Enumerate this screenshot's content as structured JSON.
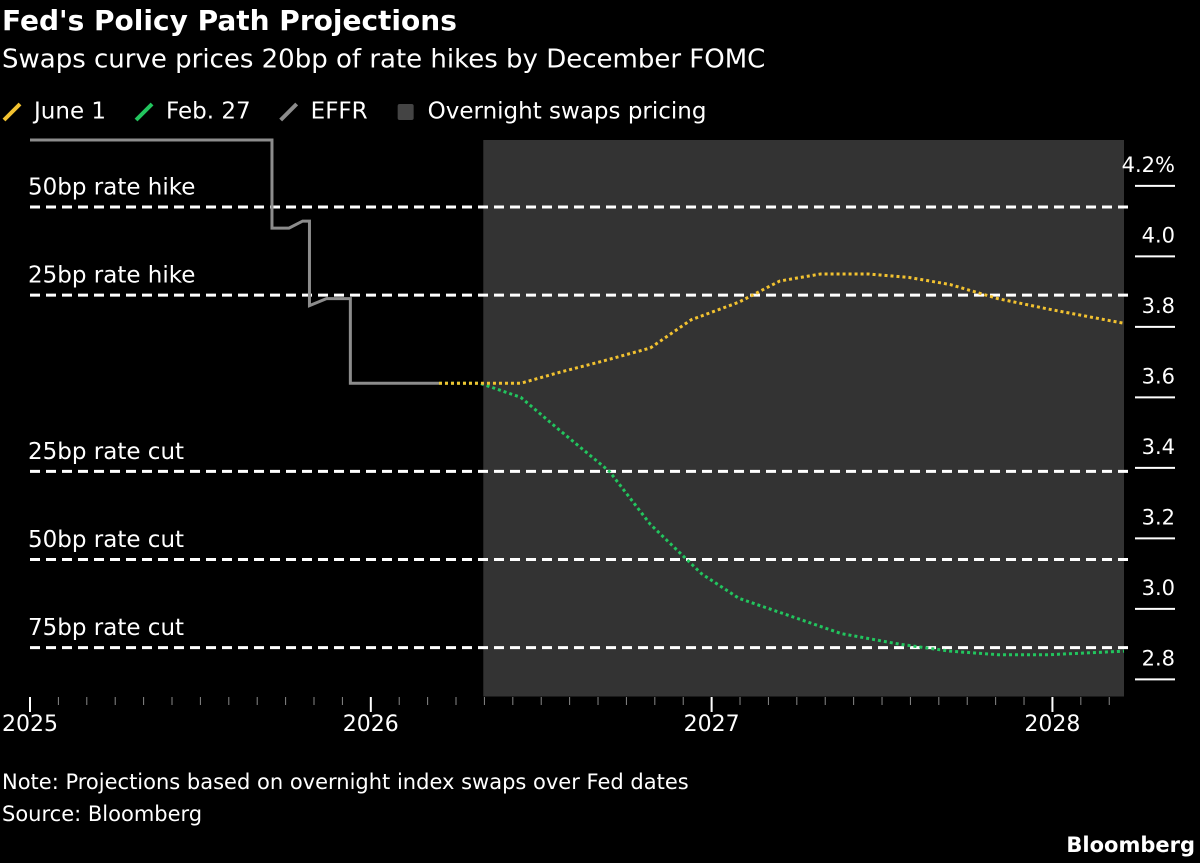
{
  "chart_data": {
    "type": "line",
    "title": "Fed's Policy Path Projections",
    "subtitle": "Swaps curve prices 20bp of rate hikes by December FOMC",
    "series": [
      {
        "name": "June 1",
        "color": "#f2c230",
        "style": "dotted",
        "x": [
          2026.2,
          2026.44,
          2026.55,
          2026.67,
          2026.82,
          2026.94,
          2027.08,
          2027.2,
          2027.32,
          2027.46,
          2027.58,
          2027.7,
          2027.84,
          2027.99,
          2028.21
        ],
        "values": [
          3.64,
          3.64,
          3.67,
          3.7,
          3.74,
          3.82,
          3.87,
          3.93,
          3.95,
          3.95,
          3.94,
          3.92,
          3.88,
          3.85,
          3.81
        ]
      },
      {
        "name": "Feb. 27",
        "color": "#22c55e",
        "style": "dotted",
        "x": [
          2026.2,
          2026.32,
          2026.44,
          2026.55,
          2026.7,
          2026.82,
          2026.97,
          2027.08,
          2027.23,
          2027.38,
          2027.55,
          2027.7,
          2027.84,
          2027.99,
          2028.21
        ],
        "values": [
          3.64,
          3.64,
          3.6,
          3.51,
          3.39,
          3.24,
          3.1,
          3.03,
          2.98,
          2.93,
          2.9,
          2.88,
          2.87,
          2.87,
          2.88
        ]
      },
      {
        "name": "EFFR",
        "color": "#8c8c8c",
        "style": "solid",
        "x": [
          2025,
          2025.71,
          2025.71,
          2025.76,
          2025.8,
          2025.82,
          2025.82,
          2025.87,
          2025.94,
          2025.94,
          2026.2
        ],
        "values": [
          4.33,
          4.33,
          4.08,
          4.08,
          4.1,
          4.1,
          3.86,
          3.88,
          3.88,
          3.64,
          3.64
        ]
      }
    ],
    "shade": {
      "name": "Overnight swaps pricing",
      "color": "#333333",
      "x": [
        2026.33,
        2028.21
      ]
    },
    "reference_lines": [
      {
        "label": "50bp rate hike",
        "value": 4.14
      },
      {
        "label": "25bp rate hike",
        "value": 3.89
      },
      {
        "label": "25bp rate cut",
        "value": 3.39
      },
      {
        "label": "50bp rate cut",
        "value": 3.14
      },
      {
        "label": "75bp rate cut",
        "value": 2.89
      }
    ],
    "xlim": [
      2025,
      2028.21
    ],
    "xticks": [
      2025,
      2026,
      2027,
      2028
    ],
    "ylim": [
      2.75,
      4.33
    ],
    "yticks": [
      {
        "value": 4.2,
        "label": "4.2%"
      },
      {
        "value": 4,
        "label": "4.0"
      },
      3.8,
      3.6,
      3.4,
      3.2,
      {
        "value": 3,
        "label": "3.0"
      },
      2.8
    ],
    "note": "Note: Projections based on overnight index swaps over Fed dates",
    "source": "Source: Bloomberg",
    "logo": "Bloomberg"
  }
}
